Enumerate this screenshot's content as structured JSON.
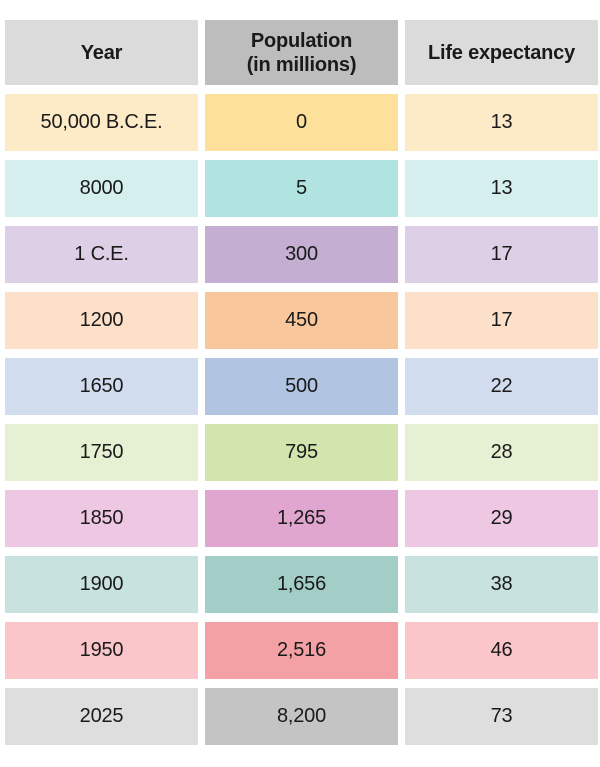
{
  "chart_data": {
    "type": "table",
    "columns": [
      "Year",
      "Population\n(in millions)",
      "Life expectancy"
    ],
    "rows": [
      [
        "50,000 B.C.E.",
        "0",
        "13"
      ],
      [
        "8000",
        "5",
        "13"
      ],
      [
        "1 C.E.",
        "300",
        "17"
      ],
      [
        "1200",
        "450",
        "17"
      ],
      [
        "1650",
        "500",
        "22"
      ],
      [
        "1750",
        "795",
        "28"
      ],
      [
        "1850",
        "1,265",
        "29"
      ],
      [
        "1900",
        "1,656",
        "38"
      ],
      [
        "1950",
        "2,516",
        "46"
      ],
      [
        "2025",
        "8,200",
        "73"
      ]
    ]
  },
  "colors": {
    "header": [
      "#dbdbdb",
      "#bdbdbd",
      "#dbdbdb"
    ],
    "rows": [
      [
        "#fdebc8",
        "#fde19b",
        "#fdebc8"
      ],
      [
        "#d4efee",
        "#b1e3e0",
        "#d4efee"
      ],
      [
        "#ddd0e6",
        "#c4afd3",
        "#ddd0e6"
      ],
      [
        "#fce0c9",
        "#f8c89c",
        "#fce0c9"
      ],
      [
        "#d1dcef",
        "#b1c5e3",
        "#d1dcef"
      ],
      [
        "#e6f1d3",
        "#d3e5ae",
        "#e6f1d3"
      ],
      [
        "#eec8e2",
        "#e0a6cf",
        "#eec8e2"
      ],
      [
        "#c8e3df",
        "#a2cec7",
        "#c8e3df"
      ],
      [
        "#fac6ca",
        "#f4a1a6",
        "#fac6ca"
      ],
      [
        "#dedede",
        "#c4c4c4",
        "#dedede"
      ]
    ],
    "text": "#1a1a1a"
  }
}
